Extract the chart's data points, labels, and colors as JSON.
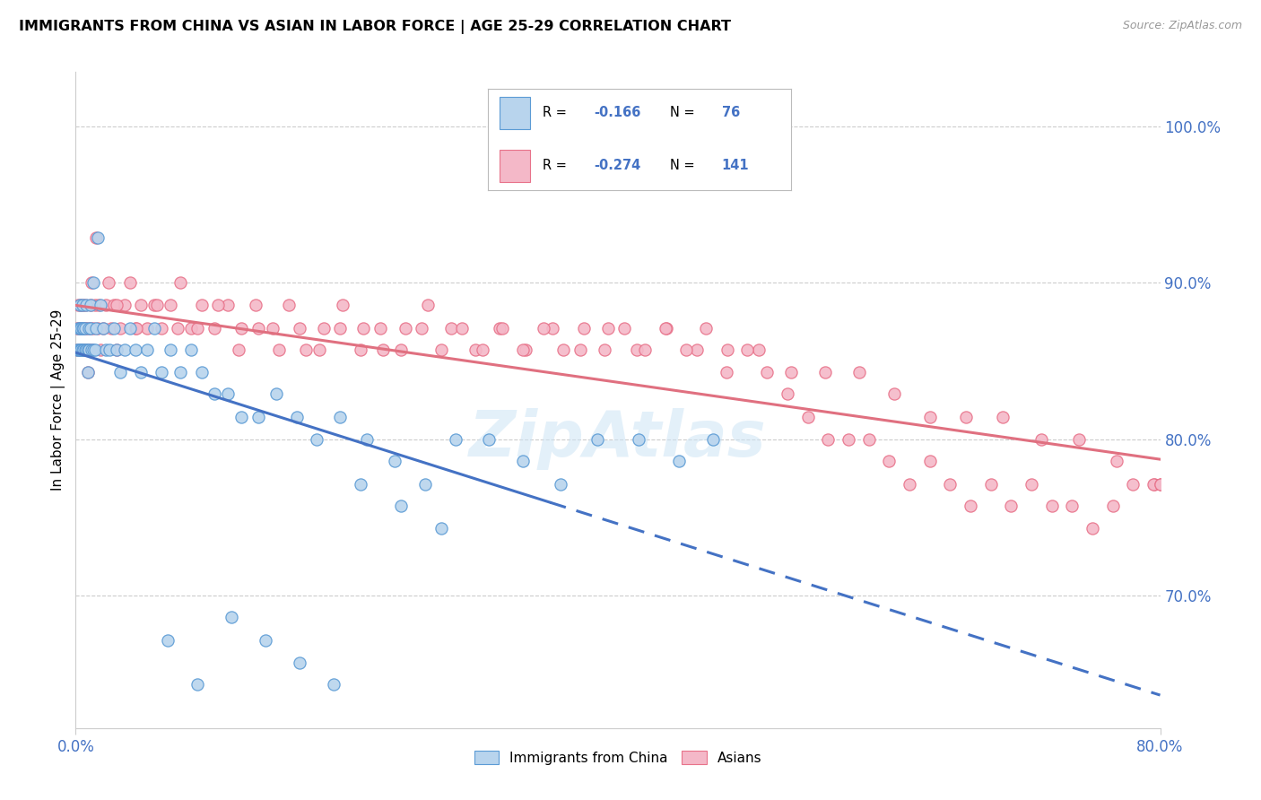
{
  "title": "IMMIGRANTS FROM CHINA VS ASIAN IN LABOR FORCE | AGE 25-29 CORRELATION CHART",
  "source": "Source: ZipAtlas.com",
  "ylabel": "In Labor Force | Age 25-29",
  "ytick_values": [
    0.7,
    0.8,
    0.9,
    1.0
  ],
  "ytick_labels": [
    "70.0%",
    "80.0%",
    "90.0%",
    "100.0%"
  ],
  "xlim": [
    0.0,
    0.8
  ],
  "ylim": [
    0.615,
    1.035
  ],
  "legend_r_china": "-0.166",
  "legend_n_china": "76",
  "legend_r_asian": "-0.274",
  "legend_n_asian": "141",
  "color_china_fill": "#b8d4ed",
  "color_china_edge": "#5b9bd5",
  "color_asian_fill": "#f4b8c8",
  "color_asian_edge": "#e8728a",
  "trendline_china_color": "#4472c4",
  "trendline_asian_color": "#e07080",
  "watermark": "ZipAtlas",
  "legend_box_color": "#cccccc",
  "grid_color": "#cccccc",
  "axis_color": "#cccccc",
  "tick_color": "#4472c4",
  "china_x": [
    0.001,
    0.002,
    0.002,
    0.003,
    0.003,
    0.003,
    0.004,
    0.004,
    0.004,
    0.005,
    0.005,
    0.005,
    0.006,
    0.006,
    0.007,
    0.007,
    0.008,
    0.008,
    0.009,
    0.009,
    0.01,
    0.01,
    0.011,
    0.011,
    0.012,
    0.013,
    0.013,
    0.014,
    0.015,
    0.016,
    0.018,
    0.02,
    0.022,
    0.025,
    0.028,
    0.03,
    0.033,
    0.036,
    0.04,
    0.044,
    0.048,
    0.053,
    0.058,
    0.063,
    0.07,
    0.077,
    0.085,
    0.093,
    0.102,
    0.112,
    0.122,
    0.135,
    0.148,
    0.163,
    0.178,
    0.195,
    0.215,
    0.235,
    0.258,
    0.28,
    0.305,
    0.33,
    0.358,
    0.385,
    0.415,
    0.445,
    0.47,
    0.21,
    0.24,
    0.27,
    0.19,
    0.165,
    0.14,
    0.115,
    0.09,
    0.068
  ],
  "china_y": [
    0.857,
    0.857,
    0.871,
    0.857,
    0.871,
    0.886,
    0.857,
    0.871,
    0.857,
    0.871,
    0.857,
    0.886,
    0.857,
    0.871,
    0.857,
    0.871,
    0.857,
    0.886,
    0.843,
    0.857,
    0.871,
    0.857,
    0.886,
    0.871,
    0.857,
    0.9,
    0.857,
    0.857,
    0.871,
    0.929,
    0.886,
    0.871,
    0.857,
    0.857,
    0.871,
    0.857,
    0.843,
    0.857,
    0.871,
    0.857,
    0.843,
    0.857,
    0.871,
    0.843,
    0.857,
    0.843,
    0.857,
    0.843,
    0.829,
    0.829,
    0.814,
    0.814,
    0.829,
    0.814,
    0.8,
    0.814,
    0.8,
    0.786,
    0.771,
    0.8,
    0.8,
    0.786,
    0.771,
    0.8,
    0.8,
    0.786,
    0.8,
    0.771,
    0.757,
    0.743,
    0.643,
    0.657,
    0.671,
    0.686,
    0.643,
    0.671
  ],
  "asian_x": [
    0.001,
    0.001,
    0.002,
    0.002,
    0.003,
    0.003,
    0.004,
    0.004,
    0.004,
    0.005,
    0.005,
    0.005,
    0.006,
    0.006,
    0.007,
    0.007,
    0.007,
    0.008,
    0.008,
    0.009,
    0.009,
    0.01,
    0.01,
    0.011,
    0.011,
    0.012,
    0.012,
    0.013,
    0.014,
    0.015,
    0.016,
    0.017,
    0.018,
    0.02,
    0.022,
    0.024,
    0.026,
    0.028,
    0.03,
    0.033,
    0.036,
    0.04,
    0.044,
    0.048,
    0.053,
    0.058,
    0.063,
    0.07,
    0.077,
    0.085,
    0.093,
    0.102,
    0.112,
    0.122,
    0.133,
    0.145,
    0.157,
    0.17,
    0.183,
    0.197,
    0.212,
    0.227,
    0.243,
    0.26,
    0.277,
    0.295,
    0.313,
    0.332,
    0.352,
    0.372,
    0.393,
    0.414,
    0.436,
    0.458,
    0.481,
    0.504,
    0.528,
    0.553,
    0.578,
    0.604,
    0.63,
    0.657,
    0.684,
    0.712,
    0.74,
    0.768,
    0.796,
    0.03,
    0.045,
    0.06,
    0.075,
    0.09,
    0.105,
    0.12,
    0.135,
    0.15,
    0.165,
    0.18,
    0.195,
    0.21,
    0.225,
    0.24,
    0.255,
    0.27,
    0.285,
    0.3,
    0.315,
    0.33,
    0.345,
    0.36,
    0.375,
    0.39,
    0.405,
    0.42,
    0.435,
    0.45,
    0.465,
    0.48,
    0.495,
    0.51,
    0.525,
    0.54,
    0.555,
    0.57,
    0.585,
    0.6,
    0.615,
    0.63,
    0.645,
    0.66,
    0.675,
    0.69,
    0.705,
    0.72,
    0.735,
    0.75,
    0.765,
    0.78,
    0.795,
    0.8,
    0.8
  ],
  "asian_y": [
    0.871,
    0.857,
    0.871,
    0.886,
    0.857,
    0.871,
    0.857,
    0.871,
    0.886,
    0.857,
    0.871,
    0.886,
    0.857,
    0.871,
    0.857,
    0.871,
    0.886,
    0.857,
    0.871,
    0.843,
    0.857,
    0.871,
    0.857,
    0.886,
    0.871,
    0.857,
    0.9,
    0.871,
    0.886,
    0.929,
    0.871,
    0.886,
    0.857,
    0.871,
    0.886,
    0.9,
    0.871,
    0.886,
    0.857,
    0.871,
    0.886,
    0.9,
    0.871,
    0.886,
    0.871,
    0.886,
    0.871,
    0.886,
    0.9,
    0.871,
    0.886,
    0.871,
    0.886,
    0.871,
    0.886,
    0.871,
    0.886,
    0.857,
    0.871,
    0.886,
    0.871,
    0.857,
    0.871,
    0.886,
    0.871,
    0.857,
    0.871,
    0.857,
    0.871,
    0.857,
    0.871,
    0.857,
    0.871,
    0.857,
    0.857,
    0.857,
    0.843,
    0.843,
    0.843,
    0.829,
    0.814,
    0.814,
    0.814,
    0.8,
    0.8,
    0.786,
    0.771,
    0.886,
    0.871,
    0.886,
    0.871,
    0.871,
    0.886,
    0.857,
    0.871,
    0.857,
    0.871,
    0.857,
    0.871,
    0.857,
    0.871,
    0.857,
    0.871,
    0.857,
    0.871,
    0.857,
    0.871,
    0.857,
    0.871,
    0.857,
    0.871,
    0.857,
    0.871,
    0.857,
    0.871,
    0.857,
    0.871,
    0.843,
    0.857,
    0.843,
    0.829,
    0.814,
    0.8,
    0.8,
    0.8,
    0.786,
    0.771,
    0.786,
    0.771,
    0.757,
    0.771,
    0.757,
    0.771,
    0.757,
    0.757,
    0.743,
    0.757,
    0.771,
    0.771,
    0.771,
    0.771
  ]
}
